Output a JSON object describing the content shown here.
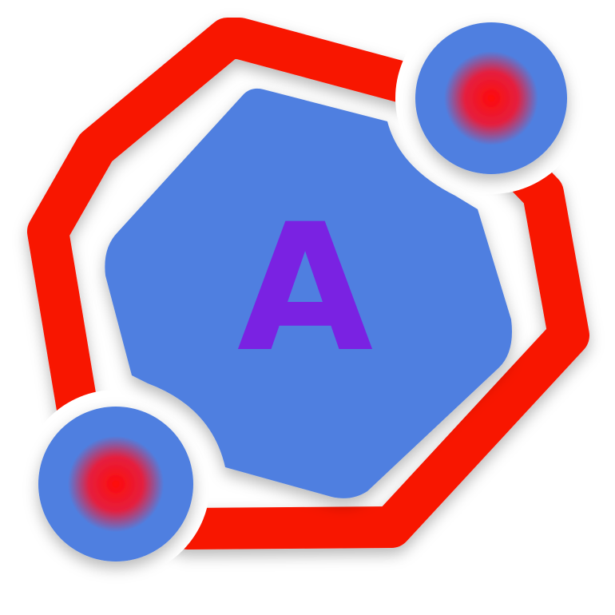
{
  "logo": {
    "letter": "A",
    "colors": {
      "ring": "#f81200",
      "hexagon": "#4f7fe0",
      "letter": "#7a22e2",
      "node_outer": "#4f7fe0",
      "node_core": "#ff0a0a",
      "background": "#ffffff"
    },
    "icon_names": [
      "hexagon-ring-icon",
      "node-icon"
    ]
  }
}
